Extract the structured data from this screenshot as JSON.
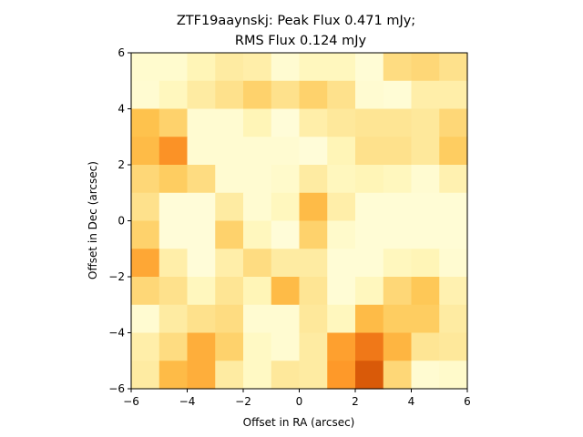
{
  "chart_data": {
    "type": "heatmap",
    "title_lines": [
      "ZTF19aaynskj: Peak Flux 0.471 mJy;",
      "RMS Flux 0.124 mJy"
    ],
    "xlabel": "Offset in RA (arcsec)",
    "ylabel": "Offset in Dec (arcsec)",
    "xlim": [
      -6,
      6
    ],
    "ylim": [
      -6,
      6
    ],
    "xticks": [
      -6,
      -4,
      -2,
      0,
      2,
      4,
      6
    ],
    "yticks": [
      -6,
      -4,
      -2,
      0,
      2,
      4,
      6
    ],
    "xtick_labels": [
      "−6",
      "−4",
      "−2",
      "0",
      "2",
      "4",
      "6"
    ],
    "ytick_labels": [
      "−6",
      "−4",
      "−2",
      "0",
      "2",
      "4",
      "6"
    ],
    "colormap": "YlOrBr",
    "grid": false,
    "color_range": [
      0,
      1
    ],
    "values_top_to_bottom": [
      [
        0.07,
        0.07,
        0.14,
        0.2,
        0.18,
        0.06,
        0.12,
        0.12,
        0.05,
        0.28,
        0.3,
        0.26
      ],
      [
        0.06,
        0.12,
        0.2,
        0.26,
        0.32,
        0.26,
        0.32,
        0.26,
        0.06,
        0.05,
        0.18,
        0.18
      ],
      [
        0.38,
        0.32,
        0.06,
        0.06,
        0.14,
        0.04,
        0.18,
        0.22,
        0.24,
        0.24,
        0.22,
        0.3
      ],
      [
        0.4,
        0.52,
        0.06,
        0.06,
        0.06,
        0.06,
        0.04,
        0.14,
        0.26,
        0.26,
        0.22,
        0.34
      ],
      [
        0.3,
        0.34,
        0.28,
        0.06,
        0.06,
        0.08,
        0.2,
        0.12,
        0.14,
        0.12,
        0.06,
        0.16
      ],
      [
        0.26,
        0.04,
        0.04,
        0.2,
        0.06,
        0.12,
        0.4,
        0.18,
        0.05,
        0.05,
        0.05,
        0.05
      ],
      [
        0.32,
        0.04,
        0.04,
        0.32,
        0.12,
        0.04,
        0.32,
        0.08,
        0.05,
        0.05,
        0.05,
        0.05
      ],
      [
        0.46,
        0.18,
        0.04,
        0.18,
        0.28,
        0.2,
        0.2,
        0.05,
        0.05,
        0.12,
        0.14,
        0.06
      ],
      [
        0.3,
        0.26,
        0.12,
        0.24,
        0.14,
        0.4,
        0.24,
        0.05,
        0.12,
        0.3,
        0.36,
        0.16
      ],
      [
        0.06,
        0.2,
        0.26,
        0.28,
        0.06,
        0.06,
        0.22,
        0.12,
        0.4,
        0.34,
        0.34,
        0.2
      ],
      [
        0.18,
        0.28,
        0.44,
        0.32,
        0.1,
        0.06,
        0.2,
        0.48,
        0.6,
        0.42,
        0.24,
        0.22
      ],
      [
        0.2,
        0.4,
        0.44,
        0.2,
        0.1,
        0.22,
        0.2,
        0.5,
        0.7,
        0.3,
        0.06,
        0.08
      ]
    ]
  }
}
